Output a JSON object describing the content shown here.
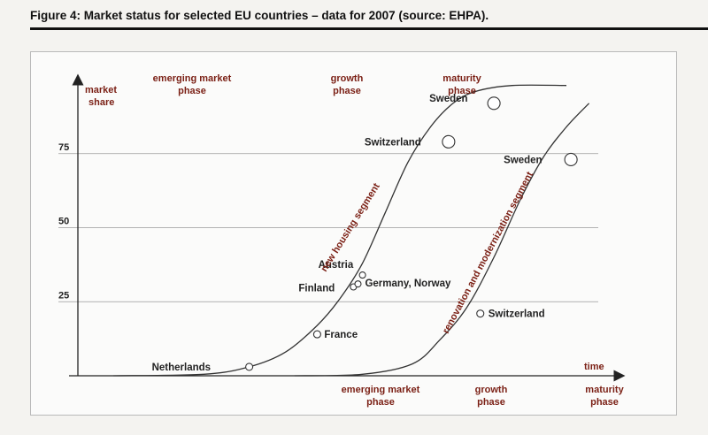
{
  "figure": {
    "title": "Figure 4: Market status for selected EU countries – data for 2007 (source: EHPA)."
  },
  "chart_data": {
    "type": "line",
    "y_axis": {
      "label_line1": "market",
      "label_line2": "share",
      "ticks": [
        {
          "value": 25,
          "label": "25"
        },
        {
          "value": 50,
          "label": "50"
        },
        {
          "value": 75,
          "label": "75"
        }
      ],
      "ylim": [
        0,
        100
      ]
    },
    "x_axis": {
      "label": "time"
    },
    "top_phases": [
      {
        "line1": "emerging market",
        "line2": "phase"
      },
      {
        "line1": "growth",
        "line2": "phase"
      },
      {
        "line1": "maturity",
        "line2": "phase"
      }
    ],
    "bottom_phases": [
      {
        "line1": "emerging market",
        "line2": "phase"
      },
      {
        "line1": "growth",
        "line2": "phase"
      },
      {
        "line1": "maturity",
        "line2": "phase"
      }
    ],
    "series": [
      {
        "name": "new housing segment",
        "curve": [
          [
            0,
            0
          ],
          [
            20,
            0.5
          ],
          [
            30,
            3
          ],
          [
            38,
            8
          ],
          [
            45,
            17
          ],
          [
            50,
            26
          ],
          [
            55,
            38
          ],
          [
            60,
            55
          ],
          [
            65,
            72
          ],
          [
            70,
            84
          ],
          [
            75,
            92
          ],
          [
            80,
            96
          ],
          [
            88,
            98
          ],
          [
            100,
            98
          ]
        ],
        "points": [
          {
            "label": "Netherlands",
            "x": 30,
            "y": 3
          },
          {
            "label": "France",
            "x": 45,
            "y": 14
          },
          {
            "label": "Finland",
            "x": 53,
            "y": 30
          },
          {
            "label": "Germany, Norway",
            "x": 54,
            "y": 31
          },
          {
            "label": "Austria",
            "x": 55,
            "y": 34
          },
          {
            "label": "Switzerland",
            "x": 74,
            "y": 79
          },
          {
            "label": "Sweden",
            "x": 84,
            "y": 92
          }
        ]
      },
      {
        "name": "renovation and modernization segment",
        "curve": [
          [
            40,
            0
          ],
          [
            55,
            0.5
          ],
          [
            66,
            4
          ],
          [
            72,
            12
          ],
          [
            78,
            23
          ],
          [
            84,
            40
          ],
          [
            90,
            60
          ],
          [
            95,
            74
          ],
          [
            100,
            84
          ],
          [
            105,
            92
          ]
        ],
        "points": [
          {
            "label": "Switzerland",
            "x": 81,
            "y": 21
          },
          {
            "label": "Sweden",
            "x": 101,
            "y": 73
          }
        ]
      }
    ],
    "grid": true
  }
}
